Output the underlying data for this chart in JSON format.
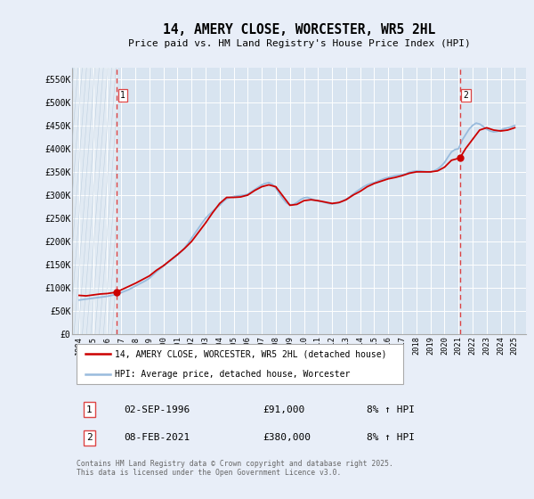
{
  "title": "14, AMERY CLOSE, WORCESTER, WR5 2HL",
  "subtitle": "Price paid vs. HM Land Registry's House Price Index (HPI)",
  "ylim": [
    0,
    575000
  ],
  "yticks": [
    0,
    50000,
    100000,
    150000,
    200000,
    250000,
    300000,
    350000,
    400000,
    450000,
    500000,
    550000
  ],
  "ytick_labels": [
    "£0",
    "£50K",
    "£100K",
    "£150K",
    "£200K",
    "£250K",
    "£300K",
    "£350K",
    "£400K",
    "£450K",
    "£500K",
    "£550K"
  ],
  "xlim_start": 1993.5,
  "xlim_end": 2025.8,
  "background_color": "#e8eef8",
  "plot_bg_color": "#d8e4f0",
  "grid_color": "#ffffff",
  "red_line_color": "#cc0000",
  "blue_line_color": "#99bbdd",
  "vline_color": "#dd4444",
  "hatch_color": "#c8d8e8",
  "marker1_x": 1996.67,
  "marker1_y": 91000,
  "marker2_x": 2021.1,
  "marker2_y": 380000,
  "transaction1_label": "1",
  "transaction1_date": "02-SEP-1996",
  "transaction1_price": "£91,000",
  "transaction1_hpi": "8% ↑ HPI",
  "transaction2_label": "2",
  "transaction2_date": "08-FEB-2021",
  "transaction2_price": "£380,000",
  "transaction2_hpi": "8% ↑ HPI",
  "legend_line1": "14, AMERY CLOSE, WORCESTER, WR5 2HL (detached house)",
  "legend_line2": "HPI: Average price, detached house, Worcester",
  "footer": "Contains HM Land Registry data © Crown copyright and database right 2025.\nThis data is licensed under the Open Government Licence v3.0.",
  "hpi_years": [
    1994.0,
    1994.25,
    1994.5,
    1994.75,
    1995.0,
    1995.25,
    1995.5,
    1995.75,
    1996.0,
    1996.25,
    1996.5,
    1996.75,
    1997.0,
    1997.25,
    1997.5,
    1997.75,
    1998.0,
    1998.25,
    1998.5,
    1998.75,
    1999.0,
    1999.25,
    1999.5,
    1999.75,
    2000.0,
    2000.25,
    2000.5,
    2000.75,
    2001.0,
    2001.25,
    2001.5,
    2001.75,
    2002.0,
    2002.25,
    2002.5,
    2002.75,
    2003.0,
    2003.25,
    2003.5,
    2003.75,
    2004.0,
    2004.25,
    2004.5,
    2004.75,
    2005.0,
    2005.25,
    2005.5,
    2005.75,
    2006.0,
    2006.25,
    2006.5,
    2006.75,
    2007.0,
    2007.25,
    2007.5,
    2007.75,
    2008.0,
    2008.25,
    2008.5,
    2008.75,
    2009.0,
    2009.25,
    2009.5,
    2009.75,
    2010.0,
    2010.25,
    2010.5,
    2010.75,
    2011.0,
    2011.25,
    2011.5,
    2011.75,
    2012.0,
    2012.25,
    2012.5,
    2012.75,
    2013.0,
    2013.25,
    2013.5,
    2013.75,
    2014.0,
    2014.25,
    2014.5,
    2014.75,
    2015.0,
    2015.25,
    2015.5,
    2015.75,
    2016.0,
    2016.25,
    2016.5,
    2016.75,
    2017.0,
    2017.25,
    2017.5,
    2017.75,
    2018.0,
    2018.25,
    2018.5,
    2018.75,
    2019.0,
    2019.25,
    2019.5,
    2019.75,
    2020.0,
    2020.25,
    2020.5,
    2020.75,
    2021.0,
    2021.25,
    2021.5,
    2021.75,
    2022.0,
    2022.25,
    2022.5,
    2022.75,
    2023.0,
    2023.25,
    2023.5,
    2023.75,
    2024.0,
    2024.25,
    2024.5,
    2024.75,
    2025.0
  ],
  "hpi_values": [
    74000,
    75000,
    76000,
    77000,
    78000,
    79000,
    80000,
    81000,
    82000,
    83500,
    85000,
    87000,
    90000,
    93000,
    96000,
    100000,
    104000,
    108000,
    112000,
    116000,
    121000,
    128000,
    135000,
    141000,
    147000,
    153000,
    159000,
    165000,
    171000,
    178000,
    186000,
    196000,
    207000,
    218000,
    229000,
    240000,
    250000,
    258000,
    265000,
    272000,
    278000,
    286000,
    292000,
    295000,
    297000,
    298000,
    299000,
    300000,
    302000,
    307000,
    312000,
    317000,
    322000,
    325000,
    327000,
    323000,
    315000,
    303000,
    292000,
    283000,
    279000,
    280000,
    284000,
    290000,
    294000,
    295000,
    292000,
    289000,
    287000,
    286000,
    284000,
    282000,
    281000,
    282000,
    284000,
    287000,
    291000,
    296000,
    302000,
    308000,
    313000,
    318000,
    322000,
    325000,
    327000,
    330000,
    333000,
    336000,
    338000,
    340000,
    342000,
    343000,
    344000,
    346000,
    349000,
    351000,
    352000,
    352000,
    351000,
    350000,
    350000,
    352000,
    356000,
    362000,
    370000,
    382000,
    393000,
    398000,
    400000,
    418000,
    430000,
    442000,
    450000,
    455000,
    453000,
    448000,
    442000,
    438000,
    436000,
    437000,
    440000,
    443000,
    445000,
    447000,
    450000
  ],
  "red_line_years": [
    1994.0,
    1994.5,
    1995.0,
    1995.5,
    1996.0,
    1996.67,
    1997.0,
    1997.5,
    1998.0,
    1998.5,
    1999.0,
    1999.5,
    2000.0,
    2000.5,
    2001.0,
    2001.5,
    2002.0,
    2002.5,
    2003.0,
    2003.5,
    2004.0,
    2004.5,
    2005.0,
    2005.5,
    2006.0,
    2006.5,
    2007.0,
    2007.5,
    2008.0,
    2008.5,
    2009.0,
    2009.5,
    2010.0,
    2010.5,
    2011.0,
    2011.5,
    2012.0,
    2012.5,
    2013.0,
    2013.5,
    2014.0,
    2014.5,
    2015.0,
    2015.5,
    2016.0,
    2016.5,
    2017.0,
    2017.5,
    2018.0,
    2018.5,
    2019.0,
    2019.5,
    2020.0,
    2020.5,
    2021.1,
    2021.5,
    2022.0,
    2022.5,
    2023.0,
    2023.5,
    2024.0,
    2024.5,
    2025.0
  ],
  "red_line_values": [
    84000,
    83000,
    85000,
    87000,
    88000,
    91000,
    96000,
    103000,
    110000,
    118000,
    126000,
    138000,
    148000,
    160000,
    172000,
    185000,
    200000,
    220000,
    240000,
    262000,
    282000,
    295000,
    295000,
    296000,
    300000,
    310000,
    318000,
    322000,
    318000,
    298000,
    278000,
    280000,
    288000,
    290000,
    288000,
    285000,
    282000,
    284000,
    290000,
    300000,
    308000,
    318000,
    325000,
    330000,
    335000,
    338000,
    342000,
    347000,
    350000,
    350000,
    350000,
    352000,
    360000,
    375000,
    380000,
    400000,
    420000,
    440000,
    445000,
    440000,
    438000,
    440000,
    445000
  ]
}
